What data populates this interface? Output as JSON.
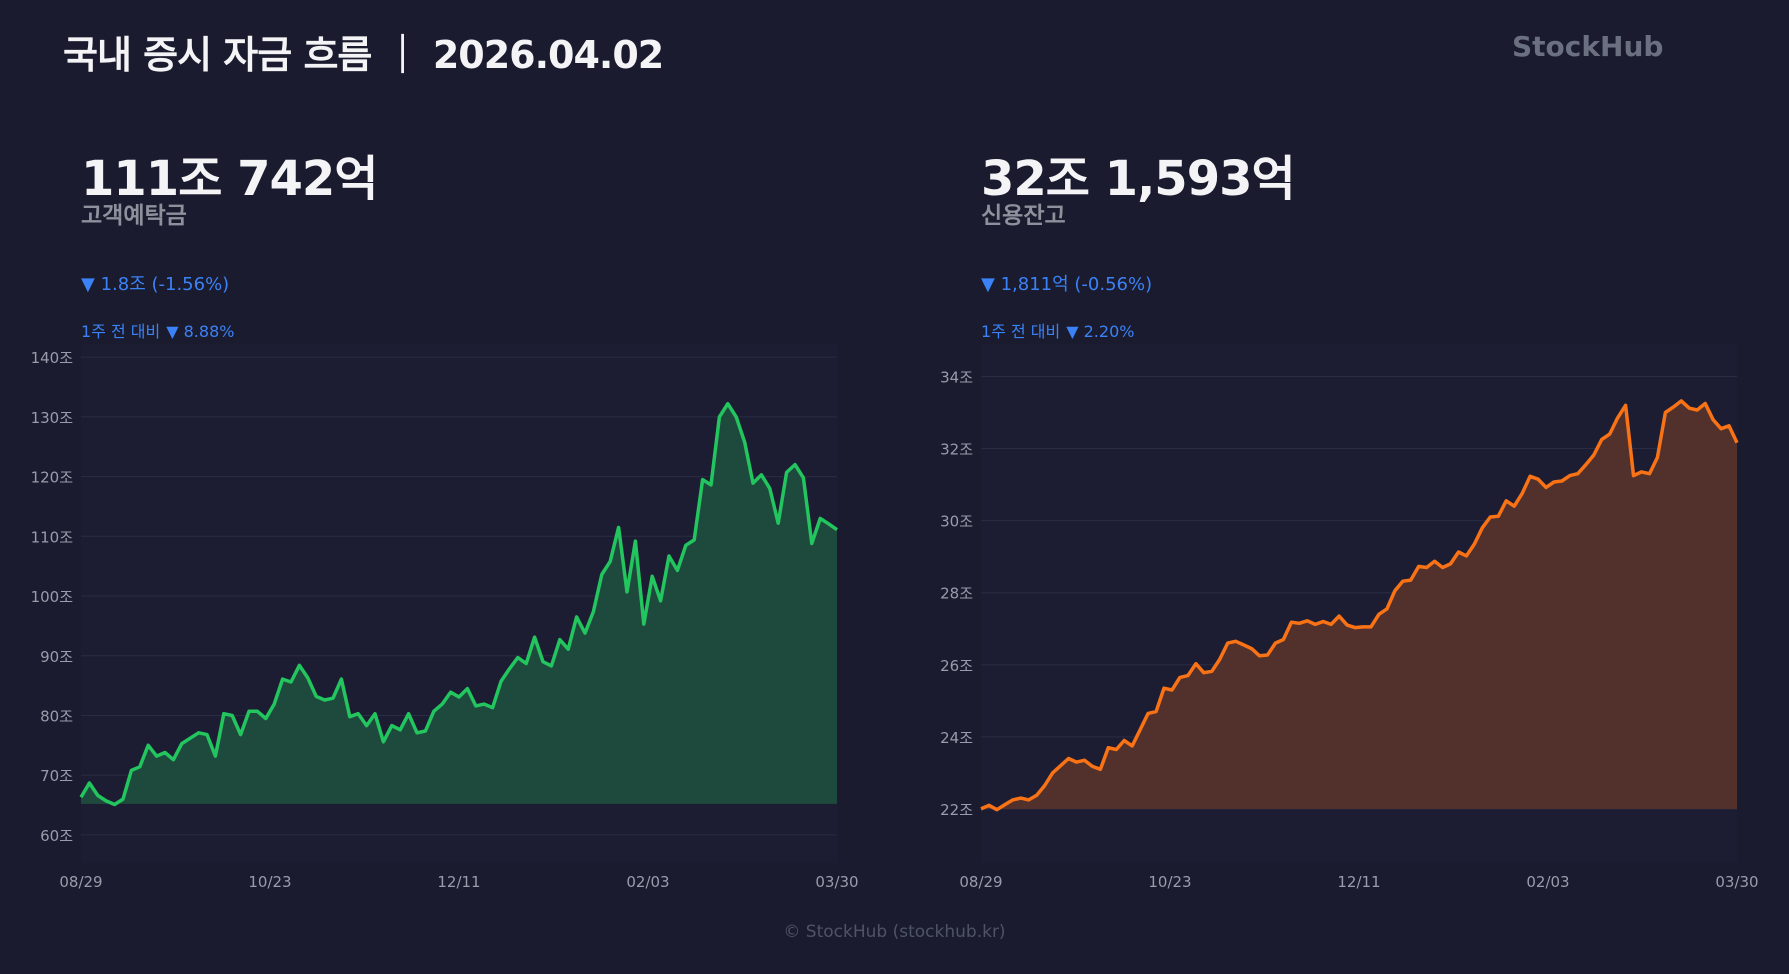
{
  "header": {
    "title": "국내 증시 자금 흐름 ｜ 2026.04.02",
    "brand": "StockHub"
  },
  "footer": {
    "text": "© StockHub (stockhub.kr)"
  },
  "panels": [
    {
      "value": "111조 742억",
      "label": "고객예탁금",
      "change": "▼ 1.8조 (-1.56%)",
      "week_label": "1주 전 대비",
      "week_change": "▼ 8.88%"
    },
    {
      "value": "32조 1,593억",
      "label": "신용잔고",
      "change": "▼ 1,811억 (-0.56%)",
      "week_label": "1주 전 대비",
      "week_change": "▼ 2.20%"
    }
  ],
  "colors": {
    "background": "#1a1b2e",
    "plot_bg": "#1c1d33",
    "deposit_line": "#22c55e",
    "deposit_fill": "#1e4a3e",
    "credit_line": "#f97316",
    "credit_fill": "#52302b",
    "negative": "#3b82f6"
  },
  "chart_data": [
    {
      "type": "area",
      "x_tick_labels": [
        "08/29",
        "10/23",
        "12/11",
        "02/03",
        "03/30"
      ],
      "y_ticks": [
        60,
        70,
        80,
        90,
        100,
        110,
        120,
        130,
        140
      ],
      "y_tick_suffix": "조",
      "ylim": [
        55.3,
        142.2
      ],
      "fill_base": 65.2,
      "grid": true,
      "values": [
        66.3,
        68.7,
        66.6,
        65.7,
        65.1,
        66,
        70.8,
        71.4,
        75,
        73.2,
        73.8,
        72.6,
        75.3,
        76.2,
        77.1,
        76.8,
        73.2,
        80.3,
        80,
        76.8,
        80.7,
        80.7,
        79.5,
        81.9,
        86.1,
        85.6,
        88.4,
        86.3,
        83.2,
        82.6,
        82.9,
        86.1,
        79.8,
        80.3,
        78.3,
        80.3,
        75.6,
        78.3,
        77.6,
        80.3,
        77.1,
        77.4,
        80.7,
        81.9,
        83.9,
        83.1,
        84.5,
        81.6,
        81.9,
        81.3,
        85.7,
        87.8,
        89.7,
        88.7,
        93.1,
        89,
        88.3,
        92.7,
        91.1,
        96.5,
        93.8,
        97.4,
        103.6,
        105.8,
        111.5,
        100.7,
        109.2,
        95.3,
        103.3,
        99.2,
        106.7,
        104.3,
        108.5,
        109.4,
        119.5,
        118.6,
        130,
        132.2,
        130,
        125.8,
        118.9,
        120.3,
        118,
        112.2,
        120.7,
        122,
        119.8,
        108.8,
        113,
        112.1,
        111.1
      ]
    },
    {
      "type": "area",
      "x_tick_labels": [
        "08/29",
        "10/23",
        "12/11",
        "02/03",
        "03/30"
      ],
      "y_ticks": [
        22,
        24,
        26,
        28,
        30,
        32,
        34
      ],
      "y_tick_suffix": "조",
      "ylim": [
        20.5,
        34.9
      ],
      "fill_base": 22,
      "grid": true,
      "values": [
        22.0,
        22.1,
        21.98,
        22.12,
        22.25,
        22.3,
        22.25,
        22.38,
        22.65,
        23.0,
        23.2,
        23.4,
        23.3,
        23.35,
        23.18,
        23.1,
        23.7,
        23.65,
        23.9,
        23.75,
        24.2,
        24.65,
        24.7,
        25.35,
        25.3,
        25.65,
        25.7,
        26.03,
        25.78,
        25.82,
        26.15,
        26.6,
        26.65,
        26.55,
        26.45,
        26.25,
        26.27,
        26.6,
        26.7,
        27.18,
        27.15,
        27.22,
        27.12,
        27.2,
        27.12,
        27.35,
        27.1,
        27.03,
        27.05,
        27.05,
        27.4,
        27.55,
        28.05,
        28.32,
        28.35,
        28.73,
        28.7,
        28.87,
        28.7,
        28.8,
        29.13,
        29.02,
        29.35,
        29.8,
        30.1,
        30.12,
        30.55,
        30.4,
        30.75,
        31.23,
        31.15,
        30.92,
        31.07,
        31.1,
        31.25,
        31.3,
        31.55,
        31.82,
        32.25,
        32.4,
        32.85,
        33.2,
        31.25,
        31.35,
        31.3,
        31.75,
        33.0,
        33.15,
        33.32,
        33.12,
        33.07,
        33.25,
        32.8,
        32.55,
        32.63,
        32.16
      ]
    }
  ]
}
